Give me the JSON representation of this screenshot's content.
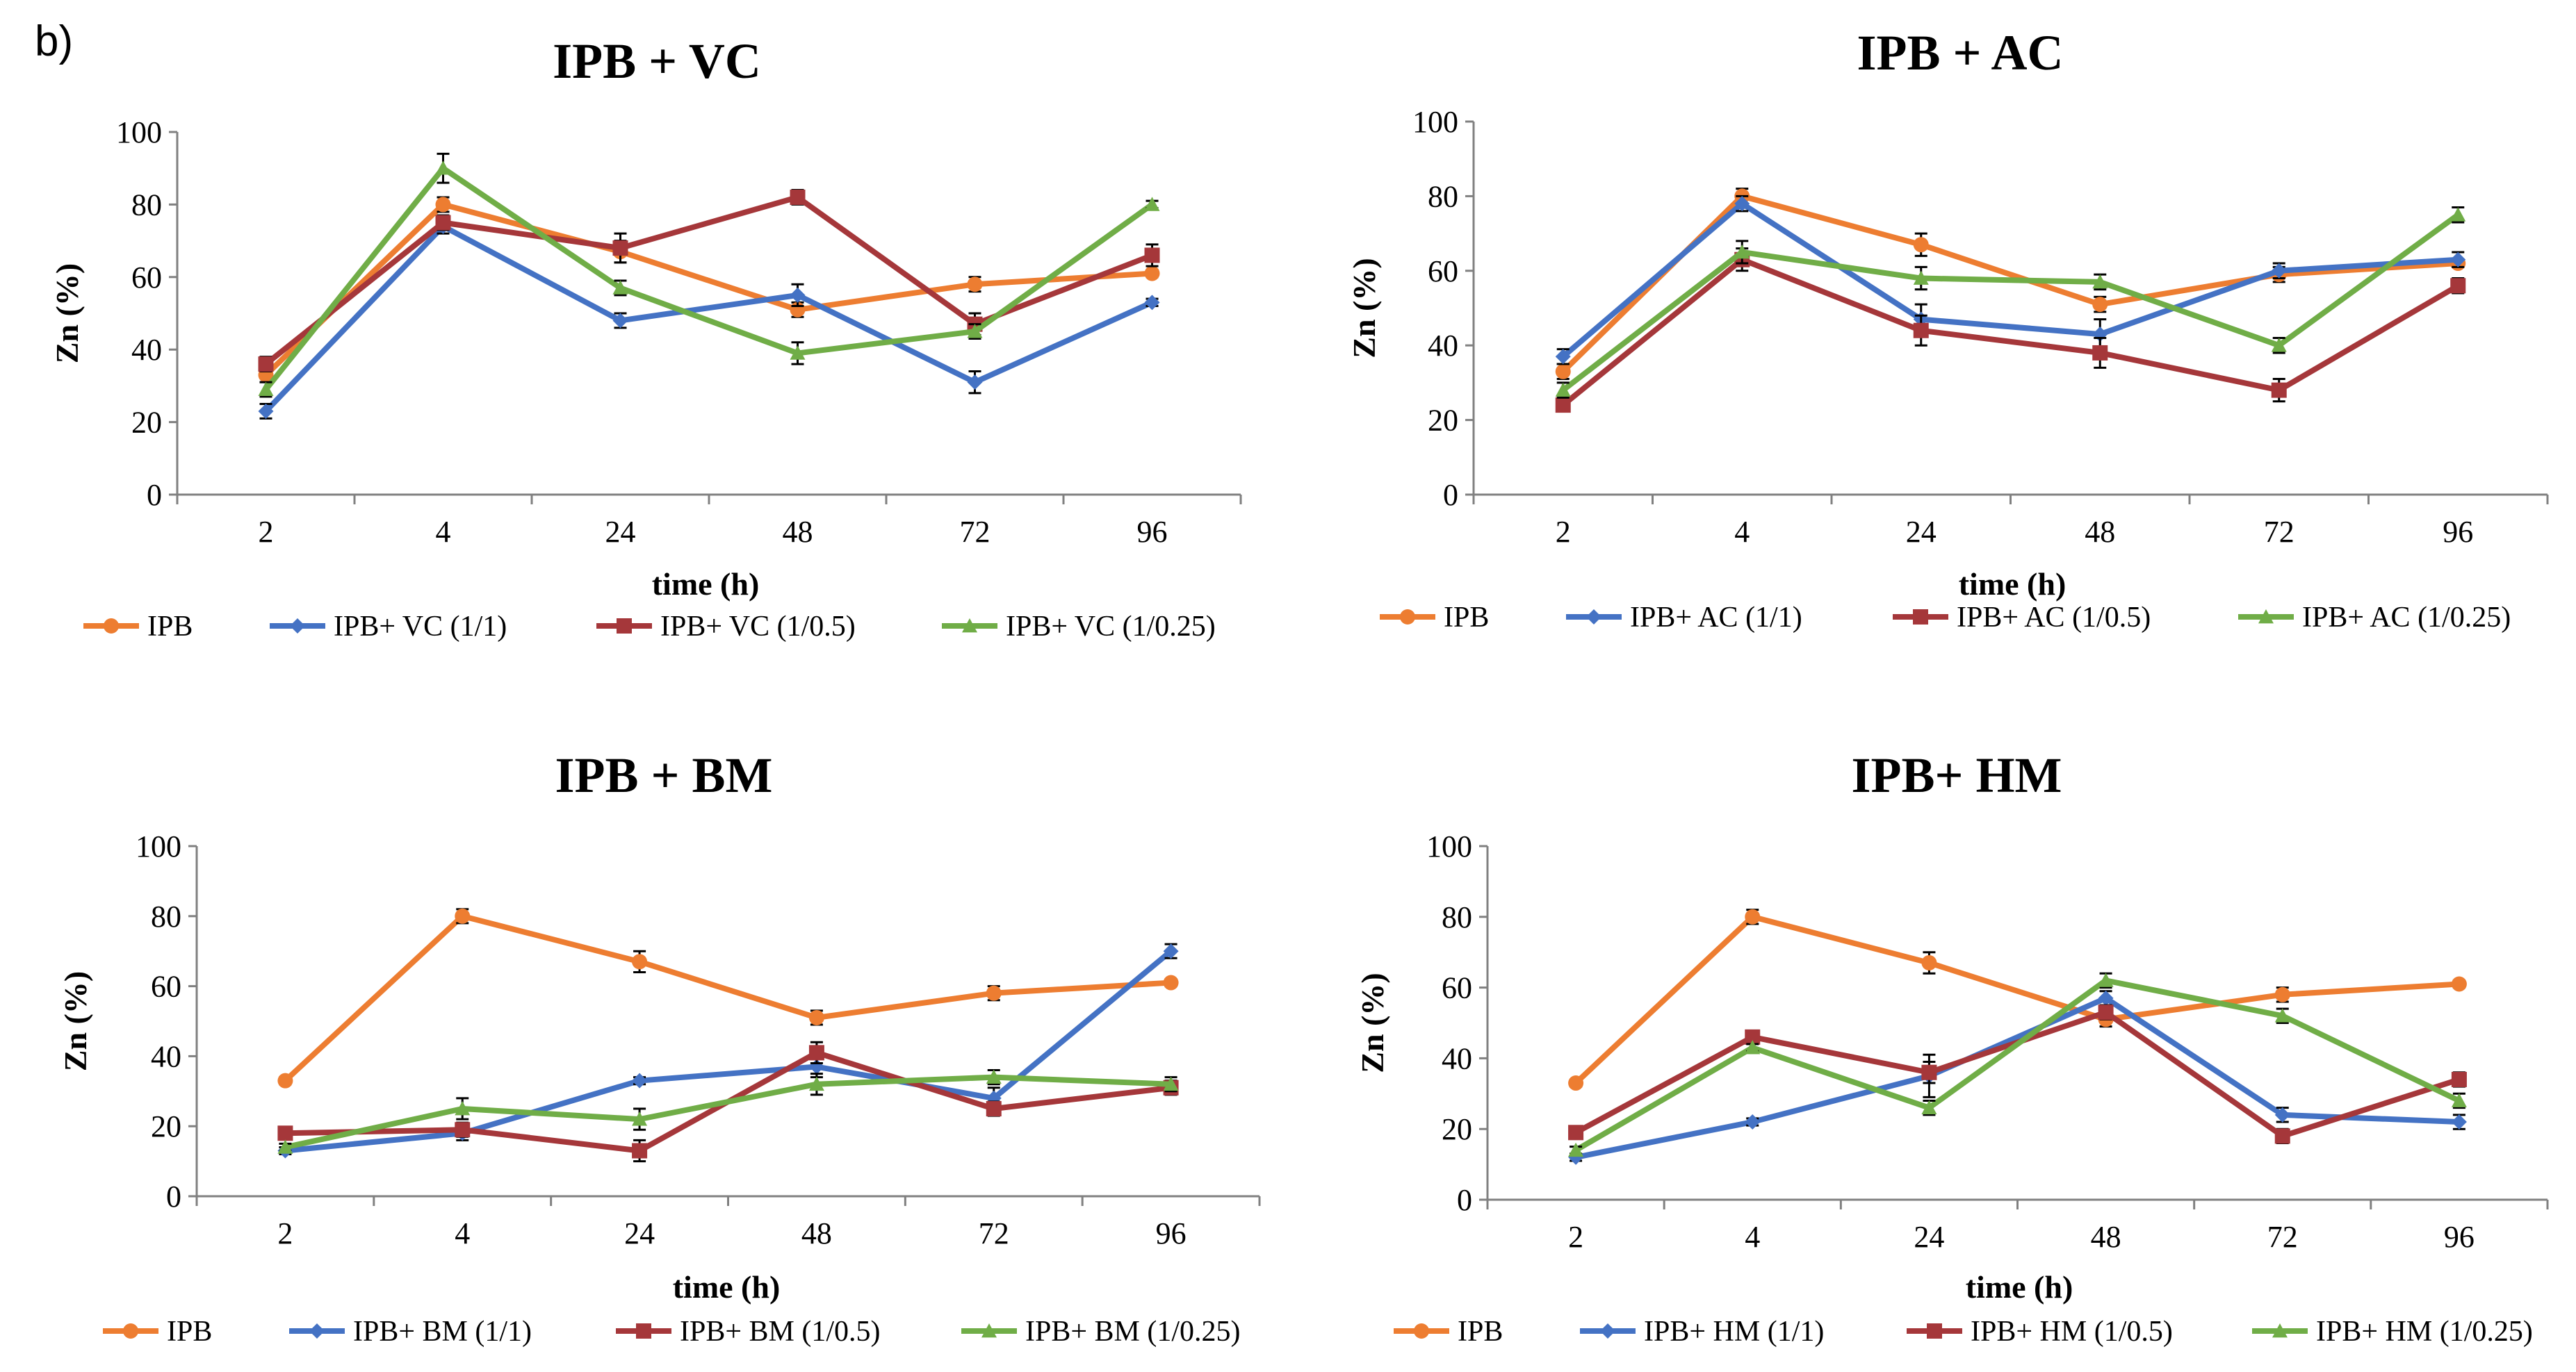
{
  "panel_label": "b)",
  "colors": {
    "IPB": "#ED7D31",
    "s11": "#4472C4",
    "s105": "#A5373A",
    "s1025": "#70AD47"
  },
  "chart_data": [
    {
      "type": "line",
      "title": "IPB + VC",
      "xlabel": "time (h)",
      "ylabel": "Zn (%)",
      "categories": [
        "2",
        "4",
        "24",
        "48",
        "72",
        "96"
      ],
      "ylim": [
        0,
        100
      ],
      "yticks": [
        "0",
        "20",
        "40",
        "60",
        "80",
        "100"
      ],
      "series": [
        {
          "name": "IPB",
          "marker": "circle",
          "values": [
            33,
            80,
            67,
            51,
            58,
            61
          ],
          "errors": [
            2,
            2,
            3,
            2,
            2,
            1
          ]
        },
        {
          "name": "IPB+ VC (1/1)",
          "marker": "diamond",
          "values": [
            23,
            74,
            48,
            55,
            31,
            53
          ],
          "errors": [
            2,
            2,
            2,
            3,
            3,
            1
          ]
        },
        {
          "name": "IPB+ VC (1/0.5)",
          "marker": "square",
          "values": [
            36,
            75,
            68,
            82,
            47,
            66
          ],
          "errors": [
            2,
            2,
            4,
            2,
            3,
            3
          ]
        },
        {
          "name": "IPB+ VC (1/0.25)",
          "marker": "triangle",
          "values": [
            29,
            90,
            57,
            39,
            45,
            80
          ],
          "errors": [
            2,
            4,
            2,
            3,
            2,
            1
          ]
        }
      ]
    },
    {
      "type": "line",
      "title": "IPB + AC",
      "xlabel": "time (h)",
      "ylabel": "Zn (%)",
      "categories": [
        "2",
        "4",
        "24",
        "48",
        "72",
        "96"
      ],
      "ylim": [
        0,
        100
      ],
      "yticks": [
        "0",
        "20",
        "40",
        "60",
        "80",
        "100"
      ],
      "series": [
        {
          "name": "IPB",
          "marker": "circle",
          "values": [
            33,
            80,
            67,
            51,
            59,
            62
          ],
          "errors": [
            2,
            2,
            3,
            2,
            2,
            1
          ]
        },
        {
          "name": "IPB+ AC (1/1)",
          "marker": "diamond",
          "values": [
            37,
            78,
            47,
            43,
            60,
            63
          ],
          "errors": [
            2,
            2,
            4,
            4,
            2,
            2
          ]
        },
        {
          "name": "IPB+ AC (1/0.5)",
          "marker": "square",
          "values": [
            24,
            63,
            44,
            38,
            28,
            56
          ],
          "errors": [
            1,
            3,
            4,
            4,
            3,
            2
          ]
        },
        {
          "name": "IPB+ AC (1/0.25)",
          "marker": "triangle",
          "values": [
            28,
            65,
            58,
            57,
            40,
            75
          ],
          "errors": [
            2,
            3,
            3,
            2,
            2,
            2
          ]
        }
      ]
    },
    {
      "type": "line",
      "title": "IPB + BM",
      "xlabel": "time (h)",
      "ylabel": "Zn (%)",
      "categories": [
        "2",
        "4",
        "24",
        "48",
        "72",
        "96"
      ],
      "ylim": [
        0,
        100
      ],
      "yticks": [
        "0",
        "20",
        "40",
        "60",
        "80",
        "100"
      ],
      "series": [
        {
          "name": "IPB",
          "marker": "circle",
          "values": [
            33,
            80,
            67,
            51,
            58,
            61
          ],
          "errors": [
            1,
            2,
            3,
            2,
            2,
            1
          ]
        },
        {
          "name": "IPB+ BM (1/1)",
          "marker": "diamond",
          "values": [
            13,
            18,
            33,
            37,
            28,
            70
          ],
          "errors": [
            1,
            2,
            1,
            3,
            3,
            2
          ]
        },
        {
          "name": "IPB+ BM (1/0.5)",
          "marker": "square",
          "values": [
            18,
            19,
            13,
            41,
            25,
            31
          ],
          "errors": [
            1,
            2,
            3,
            3,
            2,
            2
          ]
        },
        {
          "name": "IPB+ BM (1/0.25)",
          "marker": "triangle",
          "values": [
            14,
            25,
            22,
            32,
            34,
            32
          ],
          "errors": [
            1,
            3,
            3,
            3,
            2,
            2
          ]
        }
      ]
    },
    {
      "type": "line",
      "title": "IPB+ HM",
      "xlabel": "time (h)",
      "ylabel": "Zn (%)",
      "categories": [
        "2",
        "4",
        "24",
        "48",
        "72",
        "96"
      ],
      "ylim": [
        0,
        100
      ],
      "yticks": [
        "0",
        "20",
        "40",
        "60",
        "80",
        "100"
      ],
      "series": [
        {
          "name": "IPB",
          "marker": "circle",
          "values": [
            33,
            80,
            67,
            51,
            58,
            61
          ],
          "errors": [
            1,
            2,
            3,
            2,
            2,
            1
          ]
        },
        {
          "name": "IPB+ HM (1/1)",
          "marker": "diamond",
          "values": [
            12,
            22,
            35,
            57,
            24,
            22
          ],
          "errors": [
            1,
            1,
            6,
            2,
            2,
            2
          ]
        },
        {
          "name": "IPB+ HM (1/0.5)",
          "marker": "square",
          "values": [
            19,
            46,
            36,
            53,
            18,
            34
          ],
          "errors": [
            1,
            1,
            3,
            2,
            2,
            2
          ]
        },
        {
          "name": "IPB+ HM (1/0.25)",
          "marker": "triangle",
          "values": [
            14,
            43,
            26,
            62,
            52,
            28
          ],
          "errors": [
            1,
            1,
            2,
            2,
            2,
            2
          ]
        }
      ]
    }
  ]
}
